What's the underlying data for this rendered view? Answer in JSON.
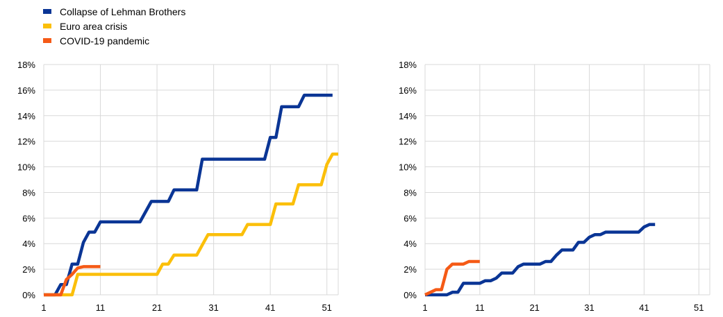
{
  "colors": {
    "lehman": "#0a3595",
    "euro": "#fbbf0a",
    "covid": "#f55a16",
    "grid": "#d9d9d9"
  },
  "legend": [
    {
      "label": "Collapse of Lehman Brothers",
      "color_key": "lehman"
    },
    {
      "label": "Euro area crisis",
      "color_key": "euro"
    },
    {
      "label": "COVID-19 pandemic",
      "color_key": "covid"
    }
  ],
  "chart_data": [
    {
      "type": "line",
      "legend_position": "top-left",
      "grid": true,
      "xlim": [
        1,
        53
      ],
      "ylim": [
        0,
        18
      ],
      "x_ticks": [
        "1",
        "11",
        "21",
        "31",
        "41",
        "51"
      ],
      "y_ticks": [
        "0%",
        "2%",
        "4%",
        "6%",
        "8%",
        "10%",
        "12%",
        "14%",
        "16%",
        "18%"
      ],
      "series": [
        {
          "name": "Collapse of Lehman Brothers",
          "color_key": "lehman",
          "x": [
            1,
            3,
            4,
            5,
            6,
            7,
            8,
            9,
            10,
            11,
            18,
            20,
            23,
            24,
            27,
            28,
            29,
            40,
            41,
            42,
            43,
            46,
            47,
            52
          ],
          "y": [
            0,
            0,
            0.8,
            0.8,
            2.4,
            2.4,
            4.1,
            4.9,
            4.9,
            5.7,
            5.7,
            7.3,
            7.3,
            8.2,
            8.2,
            8.2,
            10.6,
            10.6,
            12.3,
            12.3,
            14.7,
            14.7,
            15.6,
            15.6
          ]
        },
        {
          "name": "Euro area crisis",
          "color_key": "euro",
          "x": [
            1,
            6,
            7,
            21,
            22,
            23,
            24,
            25,
            28,
            29,
            30,
            36,
            37,
            41,
            42,
            45,
            46,
            50,
            51,
            52,
            53
          ],
          "y": [
            0,
            0,
            1.6,
            1.6,
            2.4,
            2.4,
            3.1,
            3.1,
            3.1,
            3.9,
            4.7,
            4.7,
            5.5,
            5.5,
            7.1,
            7.1,
            8.6,
            8.6,
            10.2,
            11.0,
            11.0
          ],
          "extend_right": true
        },
        {
          "name": "COVID-19 pandemic",
          "color_key": "covid",
          "x": [
            1,
            4,
            5,
            6,
            7,
            8,
            11
          ],
          "y": [
            0,
            0,
            1.2,
            1.6,
            2.1,
            2.2,
            2.2
          ]
        }
      ]
    },
    {
      "type": "line",
      "grid": true,
      "xlim": [
        1,
        53
      ],
      "ylim": [
        0,
        18
      ],
      "x_ticks": [
        "1",
        "11",
        "21",
        "31",
        "41",
        "51"
      ],
      "y_ticks": [
        "0%",
        "2%",
        "4%",
        "6%",
        "8%",
        "10%",
        "12%",
        "14%",
        "16%",
        "18%"
      ],
      "series": [
        {
          "name": "Collapse of Lehman Brothers",
          "color_key": "lehman",
          "x": [
            1,
            2,
            5,
            6,
            7,
            8,
            9,
            10,
            11,
            12,
            13,
            14,
            15,
            16,
            17,
            18,
            19,
            20,
            21,
            22,
            23,
            24,
            25,
            26,
            27,
            28,
            29,
            30,
            31,
            32,
            33,
            34,
            35,
            36,
            37,
            38,
            39,
            40,
            41,
            42,
            43
          ],
          "y": [
            0,
            0,
            0,
            0.2,
            0.2,
            0.9,
            0.9,
            0.9,
            0.9,
            1.1,
            1.1,
            1.3,
            1.7,
            1.7,
            1.7,
            2.2,
            2.4,
            2.4,
            2.4,
            2.4,
            2.6,
            2.6,
            3.1,
            3.5,
            3.5,
            3.5,
            4.1,
            4.1,
            4.5,
            4.7,
            4.7,
            4.9,
            4.9,
            4.9,
            4.9,
            4.9,
            4.9,
            4.9,
            5.3,
            5.5,
            5.5
          ]
        },
        {
          "name": "COVID-19 pandemic",
          "color_key": "covid",
          "x": [
            1,
            2,
            3,
            4,
            5,
            6,
            7,
            8,
            9,
            10,
            11
          ],
          "y": [
            0,
            0.2,
            0.4,
            0.4,
            2.0,
            2.4,
            2.4,
            2.4,
            2.6,
            2.6,
            2.6
          ]
        }
      ]
    }
  ]
}
